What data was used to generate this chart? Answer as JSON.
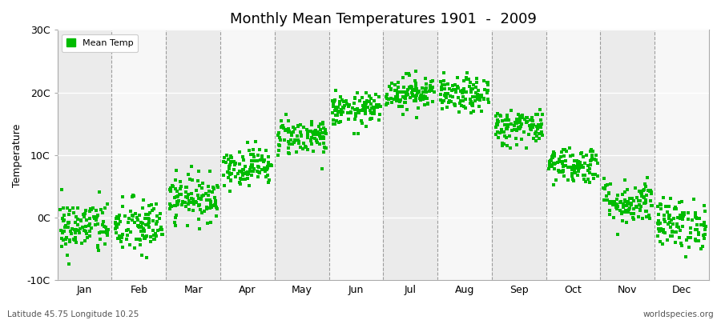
{
  "title": "Monthly Mean Temperatures 1901  -  2009",
  "ylabel": "Temperature",
  "xlabel_labels": [
    "Jan",
    "Feb",
    "Mar",
    "Apr",
    "May",
    "Jun",
    "Jul",
    "Aug",
    "Sep",
    "Oct",
    "Nov",
    "Dec"
  ],
  "subtitle_left": "Latitude 45.75 Longitude 10.25",
  "subtitle_right": "worldspecies.org",
  "ylim": [
    -10,
    30
  ],
  "yticks": [
    -10,
    0,
    10,
    20,
    30
  ],
  "ytick_labels": [
    "-10C",
    "0C",
    "10C",
    "20C",
    "30C"
  ],
  "dot_color": "#00bb00",
  "dot_size": 5,
  "bg_color": "#ffffff",
  "plot_bg_color": "#ffffff",
  "stripe_color_odd": "#ebebeb",
  "stripe_color_even": "#f7f7f7",
  "legend_label": "Mean Temp",
  "n_years": 109,
  "monthly_means": [
    -1.5,
    -1.5,
    3.2,
    8.2,
    13.0,
    17.2,
    20.0,
    19.5,
    14.5,
    8.5,
    2.5,
    -1.0
  ],
  "monthly_stds": [
    2.2,
    2.3,
    1.8,
    1.5,
    1.5,
    1.3,
    1.4,
    1.4,
    1.5,
    1.5,
    1.8,
    2.0
  ],
  "random_seed": 42
}
